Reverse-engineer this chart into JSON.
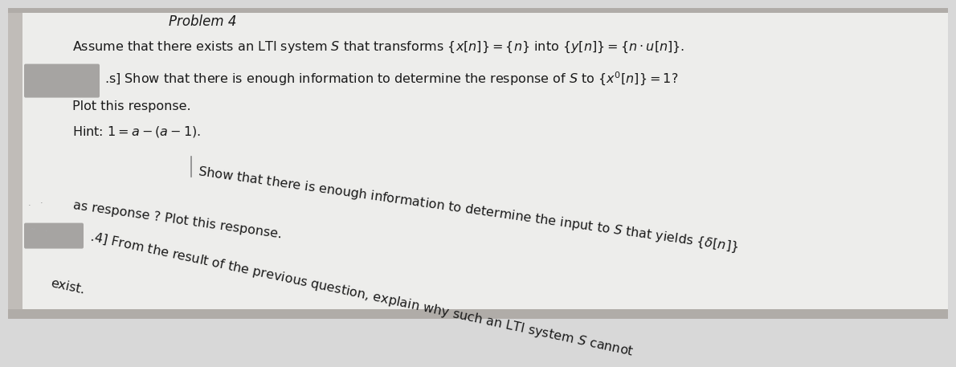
{
  "bg_color": "#d8d8d8",
  "paper_color": "#e8e6e2",
  "text_color": "#1a1a1a",
  "title": "Problem 4",
  "line1": "Assume that there exists an LTI system $S$ that transforms $\\{x[n]\\} = \\{n\\}$ into $\\{y[n]\\} = \\{n\\cdot u[n]\\}$.",
  "line2b": ".s] Show that there is enough information to determine the response of $S$ to $\\{x'[n]\\} = 1$?",
  "line3": "Plot this response.",
  "line4": "Hint: $1 = a - (a-1)$.",
  "line5a": "Show that there is enough information to determine the input to $S$ that yields $\\{\\delta[n]\\}$",
  "line5b": "as response ? Plot this response.",
  "line6a": ".4] From the result of the previous question, explain why such an LTI system $S$ cannot",
  "line6b": "exist.",
  "fontsize": 11.5,
  "title_fontsize": 12
}
